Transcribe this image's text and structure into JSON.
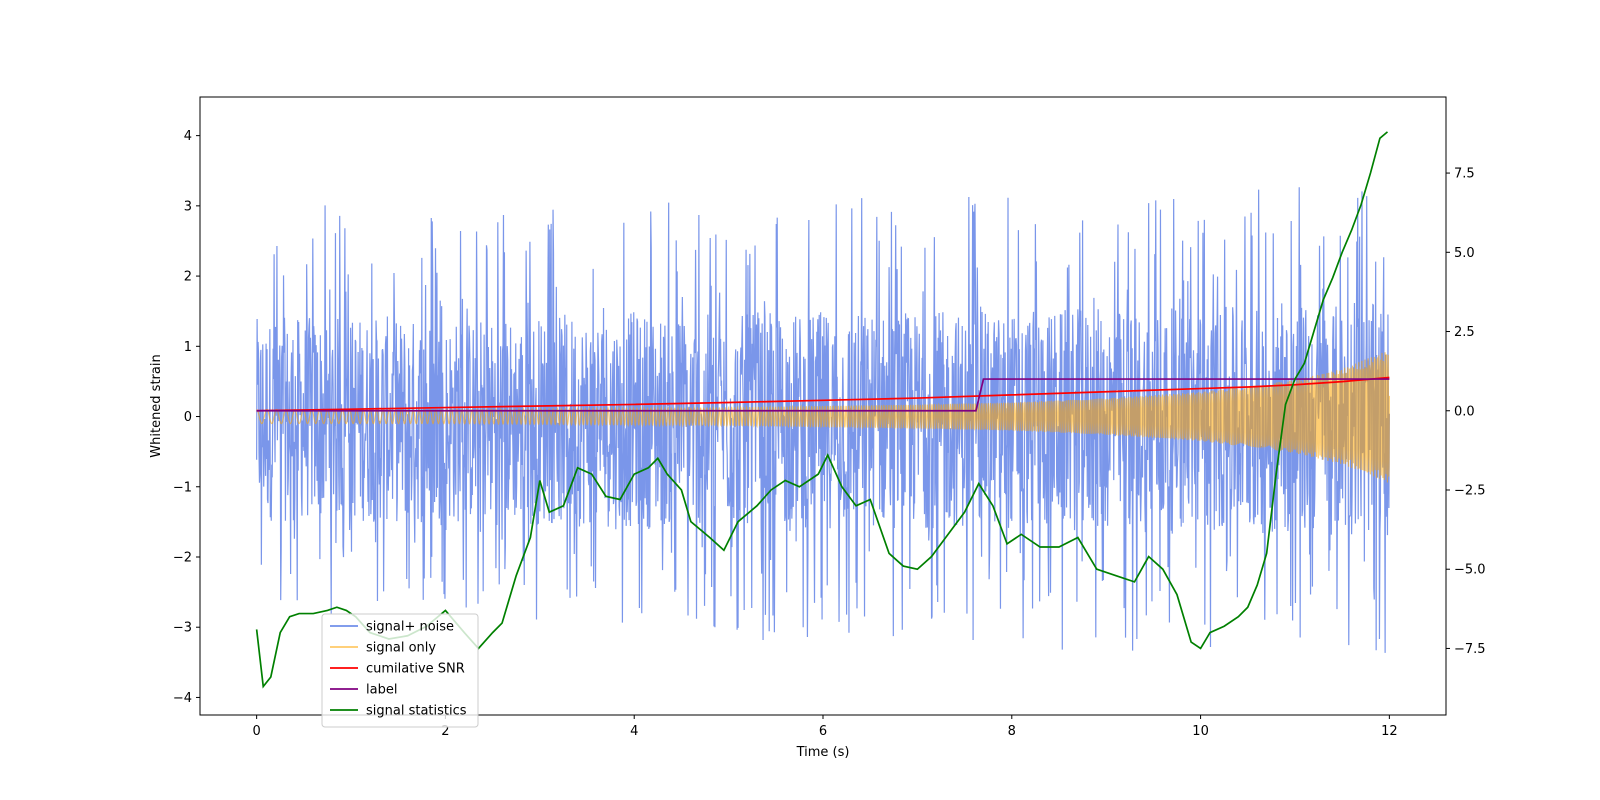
{
  "chart_data": {
    "type": "line",
    "title": "",
    "xlabel": "Time (s)",
    "ylabel": "Whitened strain",
    "y2label": "",
    "xlim": [
      -0.6,
      12.6
    ],
    "ylim": [
      -4.25,
      4.55
    ],
    "y2lim": [
      -9.6,
      9.9
    ],
    "xticks": [
      0,
      2,
      4,
      6,
      8,
      10,
      12
    ],
    "yticks": [
      -4,
      -3,
      -2,
      -1,
      0,
      1,
      2,
      3,
      4
    ],
    "y2ticks": [
      -7.5,
      -5.0,
      -2.5,
      0.0,
      2.5,
      5.0,
      7.5
    ],
    "grid": false,
    "legend_position": "lower-left",
    "series": [
      {
        "name": "signal+ noise",
        "axis": "left",
        "color": "#4169e1",
        "kind": "noise-envelope",
        "x": [
          0,
          1,
          2,
          3,
          4,
          5,
          6,
          7,
          8,
          9,
          10,
          11,
          12
        ],
        "upper": [
          2.8,
          3.1,
          2.9,
          3.0,
          3.1,
          3.0,
          3.2,
          3.3,
          3.2,
          3.2,
          3.3,
          3.4,
          3.4
        ],
        "lower": [
          -2.6,
          -2.9,
          -2.8,
          -3.0,
          -3.1,
          -3.2,
          -3.3,
          -3.2,
          -3.3,
          -3.4,
          -3.3,
          -3.5,
          -3.4
        ],
        "band_upper": [
          1.4,
          1.45,
          1.4,
          1.45,
          1.5,
          1.45,
          1.5,
          1.5,
          1.5,
          1.55,
          1.55,
          1.6,
          1.6
        ],
        "band_lower": [
          -1.5,
          -1.5,
          -1.55,
          -1.55,
          -1.6,
          -1.55,
          -1.6,
          -1.6,
          -1.6,
          -1.65,
          -1.65,
          -1.7,
          -1.7
        ]
      },
      {
        "name": "signal only",
        "axis": "left",
        "color": "#ffa500",
        "kind": "chirp-envelope",
        "x": [
          0,
          1,
          2,
          3,
          4,
          5,
          6,
          7,
          8,
          9,
          10,
          11,
          11.5,
          12
        ],
        "amplitude": [
          0.1,
          0.1,
          0.1,
          0.11,
          0.12,
          0.13,
          0.15,
          0.17,
          0.2,
          0.26,
          0.35,
          0.52,
          0.68,
          0.95
        ]
      },
      {
        "name": "cumilative SNR",
        "axis": "right",
        "color": "#ff0000",
        "x": [
          0,
          1,
          2,
          3,
          4,
          5,
          6,
          7,
          8,
          9,
          10,
          10.5,
          11,
          11.5,
          12
        ],
        "values": [
          0.0,
          0.05,
          0.1,
          0.15,
          0.2,
          0.26,
          0.33,
          0.4,
          0.5,
          0.6,
          0.7,
          0.75,
          0.82,
          0.92,
          1.05
        ]
      },
      {
        "name": "label",
        "axis": "right",
        "color": "#800080",
        "x": [
          0,
          7.62,
          7.7,
          12
        ],
        "values": [
          0.0,
          0.0,
          1.0,
          1.0
        ]
      },
      {
        "name": "signal statistics",
        "axis": "right",
        "color": "#008000",
        "x": [
          0,
          0.07,
          0.15,
          0.25,
          0.35,
          0.45,
          0.6,
          0.75,
          0.85,
          0.95,
          1.05,
          1.2,
          1.4,
          1.6,
          1.8,
          2.0,
          2.2,
          2.35,
          2.5,
          2.6,
          2.75,
          2.9,
          3.0,
          3.1,
          3.25,
          3.4,
          3.55,
          3.7,
          3.85,
          4.0,
          4.15,
          4.25,
          4.35,
          4.5,
          4.6,
          4.8,
          4.95,
          5.1,
          5.3,
          5.45,
          5.6,
          5.75,
          5.95,
          6.05,
          6.2,
          6.35,
          6.5,
          6.7,
          6.85,
          7.0,
          7.15,
          7.3,
          7.5,
          7.65,
          7.8,
          7.95,
          8.1,
          8.3,
          8.5,
          8.7,
          8.9,
          9.1,
          9.3,
          9.45,
          9.6,
          9.75,
          9.9,
          10.0,
          10.1,
          10.25,
          10.4,
          10.5,
          10.6,
          10.7,
          10.8,
          10.9,
          11.0,
          11.1,
          11.2,
          11.3,
          11.4,
          11.5,
          11.6,
          11.7,
          11.8,
          11.9,
          11.98
        ],
        "values": [
          -6.9,
          -8.7,
          -8.4,
          -7.0,
          -6.5,
          -6.4,
          -6.4,
          -6.3,
          -6.2,
          -6.3,
          -6.5,
          -7.0,
          -7.2,
          -7.1,
          -6.8,
          -6.3,
          -7.0,
          -7.5,
          -7.0,
          -6.7,
          -5.2,
          -4.0,
          -2.2,
          -3.2,
          -3.0,
          -1.8,
          -2.0,
          -2.7,
          -2.8,
          -2.0,
          -1.8,
          -1.5,
          -2.0,
          -2.5,
          -3.5,
          -4.0,
          -4.4,
          -3.5,
          -3.0,
          -2.5,
          -2.2,
          -2.4,
          -2.0,
          -1.4,
          -2.4,
          -3.0,
          -2.8,
          -4.5,
          -4.9,
          -5.0,
          -4.6,
          -4.0,
          -3.2,
          -2.3,
          -3.0,
          -4.2,
          -3.9,
          -4.3,
          -4.3,
          -4.0,
          -5.0,
          -5.2,
          -5.4,
          -4.6,
          -5.0,
          -5.8,
          -7.3,
          -7.5,
          -7.0,
          -6.8,
          -6.5,
          -6.2,
          -5.5,
          -4.5,
          -2.0,
          0.2,
          1.0,
          1.5,
          2.5,
          3.5,
          4.2,
          5.0,
          5.7,
          6.5,
          7.5,
          8.6,
          8.8
        ]
      }
    ]
  }
}
